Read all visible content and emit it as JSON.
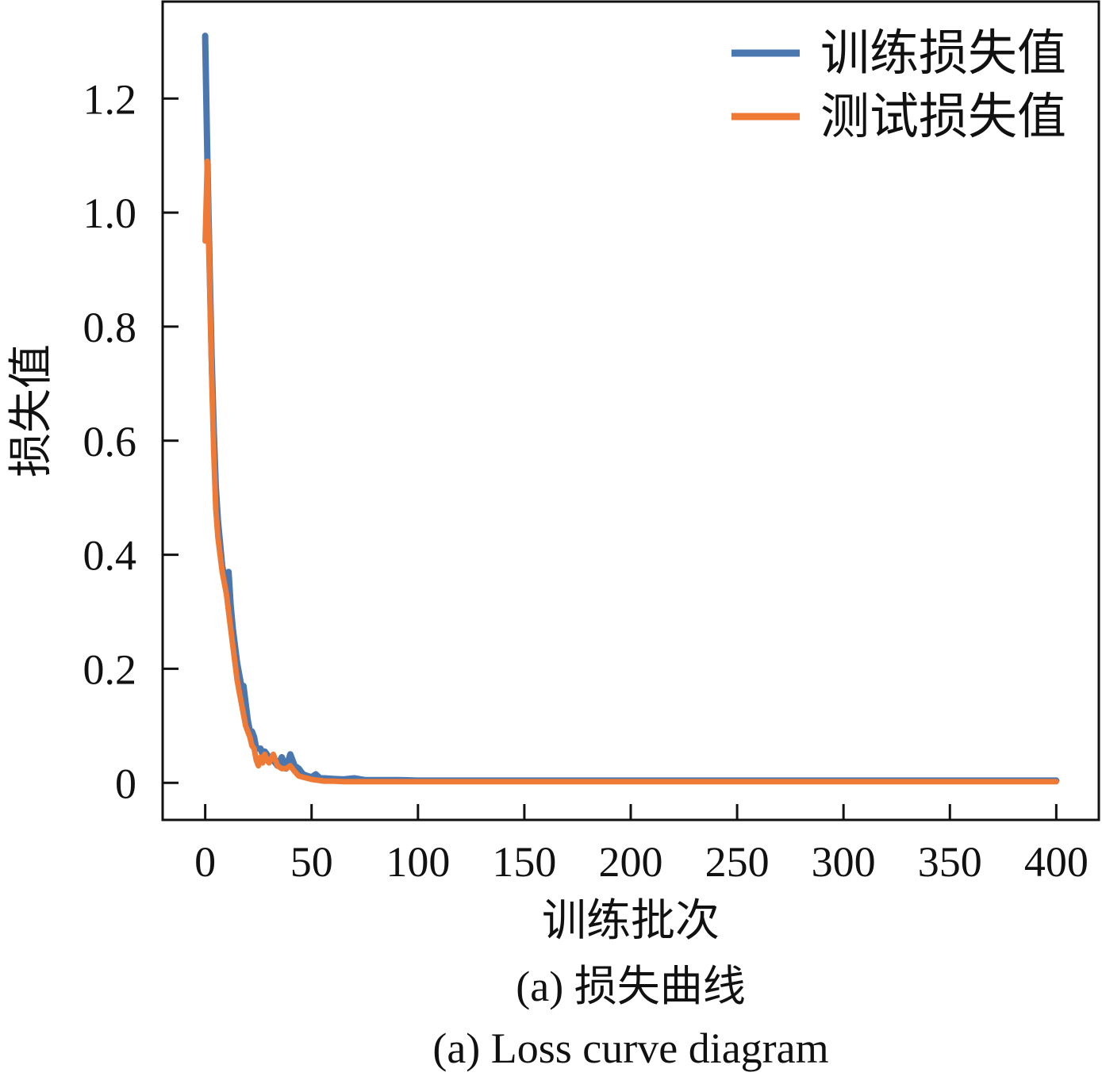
{
  "colors": {
    "train": "#4a77b0",
    "test": "#ee7a35",
    "axis": "#111111",
    "background": "#ffffff"
  },
  "chart_data": {
    "type": "line",
    "title": "",
    "xlabel": "训练批次",
    "ylabel": "损失值",
    "xlim": [
      -20,
      420
    ],
    "ylim": [
      -0.065,
      1.37
    ],
    "xticks": [
      0,
      50,
      100,
      150,
      200,
      250,
      300,
      350,
      400
    ],
    "xtick_labels": [
      "0",
      "50",
      "100",
      "150",
      "200",
      "250",
      "300",
      "350",
      "400"
    ],
    "yticks": [
      0,
      0.2,
      0.4,
      0.6,
      0.8,
      1.0,
      1.2
    ],
    "ytick_labels": [
      "0",
      "0.2",
      "0.4",
      "0.6",
      "0.8",
      "1.0",
      "1.2"
    ],
    "grid": false,
    "legend_position": "top-right",
    "series": [
      {
        "name": "训练损失值",
        "color": "#4a77b0",
        "x": [
          0,
          1,
          2,
          3,
          4,
          5,
          6,
          7,
          8,
          9,
          10,
          11,
          12,
          13,
          14,
          15,
          16,
          17,
          18,
          19,
          20,
          21,
          22,
          23,
          24,
          25,
          26,
          27,
          28,
          29,
          30,
          32,
          34,
          36,
          38,
          40,
          42,
          44,
          46,
          48,
          50,
          52,
          54,
          56,
          60,
          65,
          70,
          75,
          80,
          90,
          100,
          120,
          150,
          200,
          250,
          300,
          350,
          400
        ],
        "y": [
          1.31,
          1.1,
          0.92,
          0.75,
          0.62,
          0.52,
          0.46,
          0.42,
          0.38,
          0.36,
          0.36,
          0.37,
          0.31,
          0.27,
          0.24,
          0.21,
          0.19,
          0.17,
          0.17,
          0.14,
          0.11,
          0.09,
          0.09,
          0.08,
          0.06,
          0.06,
          0.06,
          0.05,
          0.055,
          0.05,
          0.045,
          0.04,
          0.03,
          0.045,
          0.025,
          0.05,
          0.03,
          0.025,
          0.015,
          0.012,
          0.01,
          0.015,
          0.008,
          0.008,
          0.007,
          0.006,
          0.008,
          0.005,
          0.005,
          0.005,
          0.004,
          0.004,
          0.004,
          0.004,
          0.004,
          0.004,
          0.004,
          0.004
        ]
      },
      {
        "name": "测试损失值",
        "color": "#ee7a35",
        "x": [
          0,
          1,
          2,
          3,
          4,
          5,
          6,
          7,
          8,
          9,
          10,
          11,
          12,
          13,
          14,
          15,
          16,
          17,
          18,
          19,
          20,
          21,
          22,
          23,
          24,
          25,
          26,
          27,
          28,
          29,
          30,
          32,
          34,
          36,
          38,
          40,
          42,
          44,
          46,
          48,
          50,
          52,
          54,
          56,
          60,
          65,
          70,
          75,
          80,
          90,
          100,
          120,
          150,
          200,
          250,
          300,
          350,
          400
        ],
        "y": [
          0.95,
          1.09,
          0.9,
          0.72,
          0.58,
          0.48,
          0.43,
          0.4,
          0.37,
          0.35,
          0.33,
          0.3,
          0.27,
          0.24,
          0.21,
          0.18,
          0.16,
          0.14,
          0.12,
          0.1,
          0.09,
          0.08,
          0.065,
          0.06,
          0.04,
          0.03,
          0.045,
          0.035,
          0.05,
          0.04,
          0.035,
          0.05,
          0.03,
          0.025,
          0.025,
          0.03,
          0.02,
          0.012,
          0.01,
          0.008,
          0.006,
          0.005,
          0.004,
          0.003,
          0.003,
          0.002,
          0.002,
          0.002,
          0.002,
          0.002,
          0.002,
          0.002,
          0.002,
          0.002,
          0.002,
          0.002,
          0.002,
          0.002
        ]
      }
    ]
  },
  "captions": {
    "zh": "(a)  损失曲线",
    "en": "(a)  Loss curve diagram"
  }
}
